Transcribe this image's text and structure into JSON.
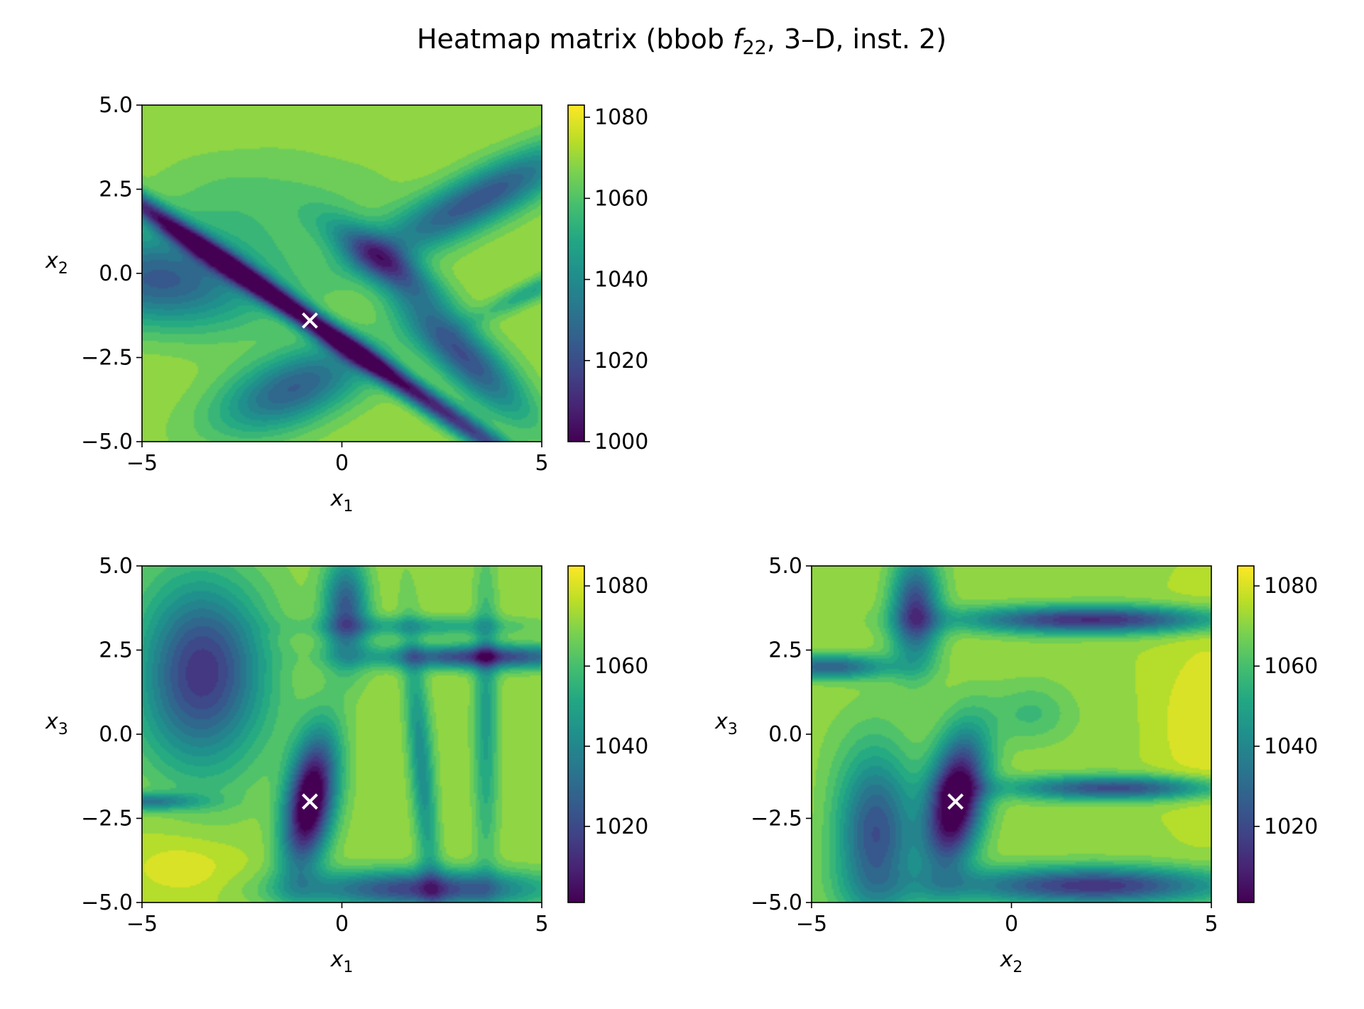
{
  "title": {
    "prefix": "Heatmap matrix (bbob ",
    "fname": "f",
    "fsub": "22",
    "suffix": ", 3–D, inst. 2)"
  },
  "colormap": "viridis",
  "marker": {
    "symbol": "×",
    "color": "#ffffff"
  },
  "chart_data": [
    {
      "type": "heatmap",
      "id": "x1-x2",
      "xlabel": {
        "var": "x",
        "sub": "1"
      },
      "ylabel": {
        "var": "x",
        "sub": "2"
      },
      "xlim": [
        -5,
        5
      ],
      "ylim": [
        -5,
        5
      ],
      "xticks": [
        -5,
        0,
        5
      ],
      "xtick_labels": [
        "−5",
        "0",
        "5"
      ],
      "yticks": [
        5.0,
        2.5,
        0.0,
        -2.5,
        -5.0
      ],
      "ytick_labels": [
        "5.0",
        "2.5",
        "0.0",
        "−2.5",
        "−5.0"
      ],
      "colorbar": {
        "range": [
          1000,
          1083
        ],
        "ticks": [
          1000,
          1020,
          1040,
          1060,
          1080
        ],
        "tick_labels": [
          "1000",
          "1020",
          "1040",
          "1060",
          "1080"
        ]
      },
      "background": 1070,
      "features": [
        {
          "cx": -0.8,
          "cy": -1.4,
          "sx": 9.0,
          "sy": 0.33,
          "angle": -39,
          "depth": 75
        },
        {
          "cx": -4.5,
          "cy": -0.2,
          "sx": 2.6,
          "sy": 1.4,
          "angle": -5,
          "depth": 45
        },
        {
          "cx": 1.0,
          "cy": 0.4,
          "sx": 1.6,
          "sy": 0.55,
          "angle": -40,
          "depth": 45
        },
        {
          "cx": 3.4,
          "cy": 2.2,
          "sx": 3.0,
          "sy": 0.75,
          "angle": 32,
          "depth": 48
        },
        {
          "cx": 3.0,
          "cy": -2.4,
          "sx": 2.4,
          "sy": 0.7,
          "angle": -50,
          "depth": 50
        },
        {
          "cx": -1.2,
          "cy": -3.4,
          "sx": 2.1,
          "sy": 1.0,
          "angle": 28,
          "depth": 45
        },
        {
          "cx": 4.8,
          "cy": -0.5,
          "sx": 1.5,
          "sy": 0.3,
          "angle": 30,
          "depth": 22
        },
        {
          "cx": -2.0,
          "cy": 2.0,
          "sx": 3.0,
          "sy": 1.6,
          "angle": 0,
          "depth": 10
        }
      ],
      "minimum": {
        "x": -0.8,
        "y": -1.4
      }
    },
    {
      "type": "heatmap",
      "id": "x1-x3",
      "xlabel": {
        "var": "x",
        "sub": "1"
      },
      "ylabel": {
        "var": "x",
        "sub": "3"
      },
      "xlim": [
        -5,
        5
      ],
      "ylim": [
        -5,
        5
      ],
      "xticks": [
        -5,
        0,
        5
      ],
      "xtick_labels": [
        "−5",
        "0",
        "5"
      ],
      "yticks": [
        5.0,
        2.5,
        0.0,
        -2.5,
        -5.0
      ],
      "ytick_labels": [
        "5.0",
        "2.5",
        "0.0",
        "−2.5",
        "−5.0"
      ],
      "colorbar": {
        "range": [
          1001,
          1085
        ],
        "ticks": [
          1020,
          1040,
          1060,
          1080
        ],
        "tick_labels": [
          "1020",
          "1040",
          "1060",
          "1080"
        ]
      },
      "background": 1072,
      "features": [
        {
          "cx": -3.5,
          "cy": 1.8,
          "sx": 1.6,
          "sy": 2.8,
          "angle": 0,
          "depth": 58
        },
        {
          "cx": -0.8,
          "cy": -2.0,
          "sx": 0.6,
          "sy": 2.0,
          "angle": -8,
          "depth": 84
        },
        {
          "cx": 0.1,
          "cy": 3.7,
          "sx": 0.55,
          "sy": 1.6,
          "angle": 0,
          "depth": 48
        },
        {
          "cx": 3.5,
          "cy": 2.3,
          "sx": 2.6,
          "sy": 0.35,
          "angle": 0,
          "depth": 55
        },
        {
          "cx": 2.0,
          "cy": -4.6,
          "sx": 3.0,
          "sy": 0.55,
          "angle": 0,
          "depth": 55
        },
        {
          "cx": -5.0,
          "cy": -2.0,
          "sx": 1.4,
          "sy": 0.25,
          "angle": 0,
          "depth": 35
        },
        {
          "cx": 2.0,
          "cy": -1.0,
          "sx": 0.3,
          "sy": 4.0,
          "angle": 4,
          "depth": 30
        },
        {
          "cx": 3.6,
          "cy": 0.5,
          "sx": 0.3,
          "sy": 4.5,
          "angle": 0,
          "depth": 24
        },
        {
          "cx": 2.0,
          "cy": 3.2,
          "sx": 2.5,
          "sy": 0.3,
          "angle": 0,
          "depth": 22
        },
        {
          "cx": -4.0,
          "cy": -4.0,
          "sx": 1.5,
          "sy": 1.0,
          "angle": 0,
          "depth": -10
        }
      ],
      "minimum": {
        "x": -0.8,
        "y": -2.0
      }
    },
    {
      "type": "heatmap",
      "id": "x2-x3",
      "xlabel": {
        "var": "x",
        "sub": "2"
      },
      "ylabel": {
        "var": "x",
        "sub": "3"
      },
      "xlim": [
        -5,
        5
      ],
      "ylim": [
        -5,
        5
      ],
      "xticks": [
        -5,
        0,
        5
      ],
      "xtick_labels": [
        "−5",
        "0",
        "5"
      ],
      "yticks": [
        5.0,
        2.5,
        0.0,
        -2.5,
        -5.0
      ],
      "ytick_labels": [
        "5.0",
        "2.5",
        "0.0",
        "−2.5",
        "−5.0"
      ],
      "colorbar": {
        "range": [
          1001,
          1085
        ],
        "ticks": [
          1020,
          1040,
          1060,
          1080
        ],
        "tick_labels": [
          "1020",
          "1040",
          "1060",
          "1080"
        ]
      },
      "background": 1072,
      "features": [
        {
          "cx": -2.4,
          "cy": 3.7,
          "sx": 0.6,
          "sy": 1.6,
          "angle": 0,
          "depth": 55
        },
        {
          "cx": 2.0,
          "cy": 3.4,
          "sx": 3.2,
          "sy": 0.4,
          "angle": 0,
          "depth": 60
        },
        {
          "cx": -4.6,
          "cy": 2.0,
          "sx": 1.5,
          "sy": 0.35,
          "angle": 0,
          "depth": 45
        },
        {
          "cx": -3.4,
          "cy": -3.0,
          "sx": 1.0,
          "sy": 2.6,
          "angle": 0,
          "depth": 50
        },
        {
          "cx": -1.4,
          "cy": -2.0,
          "sx": 0.7,
          "sy": 2.0,
          "angle": -8,
          "depth": 84
        },
        {
          "cx": 2.6,
          "cy": -1.6,
          "sx": 2.6,
          "sy": 0.35,
          "angle": 0,
          "depth": 52
        },
        {
          "cx": 2.0,
          "cy": -4.5,
          "sx": 3.4,
          "sy": 0.55,
          "angle": 0,
          "depth": 58
        },
        {
          "cx": 0.5,
          "cy": 0.6,
          "sx": 1.0,
          "sy": 0.9,
          "angle": 0,
          "depth": 14
        },
        {
          "cx": 4.8,
          "cy": 0.5,
          "sx": 1.2,
          "sy": 3.0,
          "angle": 0,
          "depth": -10
        }
      ],
      "minimum": {
        "x": -1.4,
        "y": -2.0
      }
    }
  ]
}
